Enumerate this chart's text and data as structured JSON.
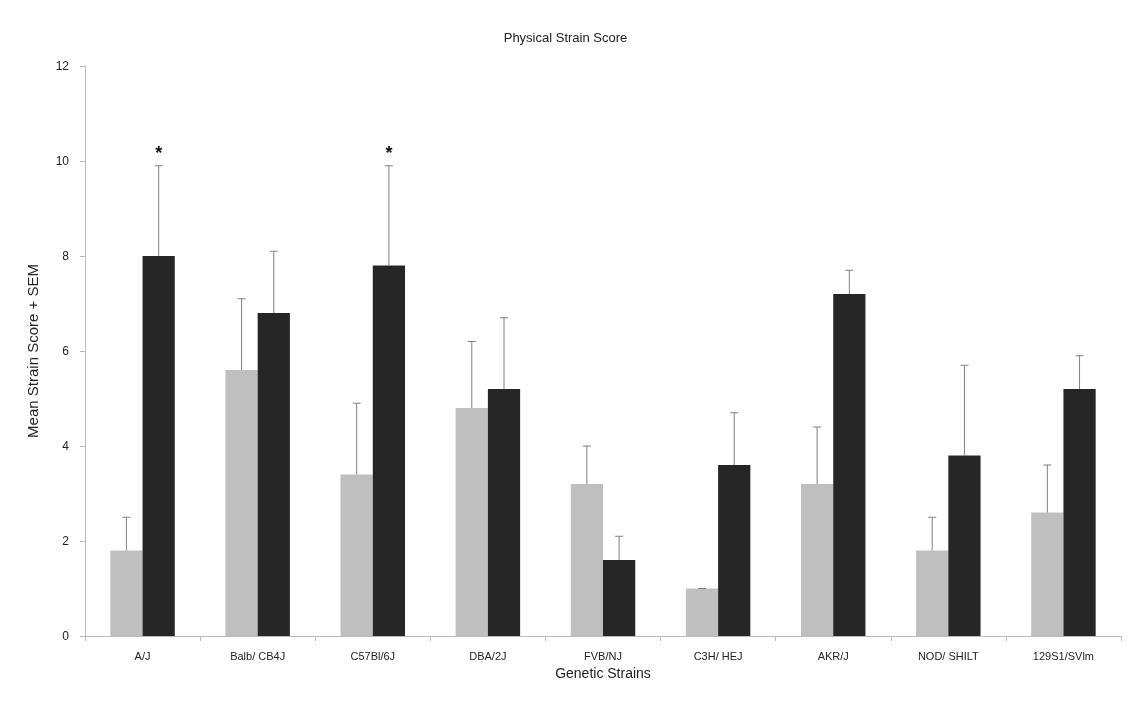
{
  "chart_data": {
    "type": "bar",
    "title": "Physical Strain Score",
    "xlabel": "Genetic Strains",
    "ylabel": "Mean Strain Score + SEM",
    "categories": [
      "A/J",
      "Balb/ CB4J",
      "C57Bl/6J",
      "DBA/2J",
      "FVB/NJ",
      "C3H/ HEJ",
      "AKR/J",
      "NOD/ SHILT",
      "129S1/SVlm"
    ],
    "series": [
      {
        "color": "#bfbfbf",
        "values": [
          1.8,
          5.6,
          3.4,
          4.8,
          3.2,
          1.0,
          3.2,
          1.8,
          2.6
        ],
        "errors": [
          [
            1.8,
            2.5
          ],
          [
            5.6,
            7.1
          ],
          [
            3.4,
            4.9
          ],
          [
            4.8,
            6.2
          ],
          [
            3.2,
            4.0
          ],
          [
            1.0,
            1.0
          ],
          [
            3.2,
            4.4
          ],
          [
            1.8,
            2.5
          ],
          [
            2.6,
            3.6
          ]
        ]
      },
      {
        "color": "#262626",
        "values": [
          8.0,
          6.8,
          7.8,
          5.2,
          1.6,
          3.6,
          7.2,
          3.8,
          5.2
        ],
        "errors": [
          [
            8.0,
            9.9
          ],
          [
            6.8,
            8.1
          ],
          [
            7.8,
            9.9
          ],
          [
            5.2,
            6.7
          ],
          [
            1.6,
            2.1
          ],
          [
            3.6,
            4.7
          ],
          [
            7.2,
            7.7
          ],
          [
            3.8,
            5.7
          ],
          [
            5.2,
            5.9
          ]
        ]
      }
    ],
    "ylim": [
      0,
      12
    ],
    "yticks": [
      0,
      2,
      4,
      6,
      8,
      10,
      12
    ],
    "grid": false,
    "annotations": [
      "*",
      "*"
    ]
  }
}
